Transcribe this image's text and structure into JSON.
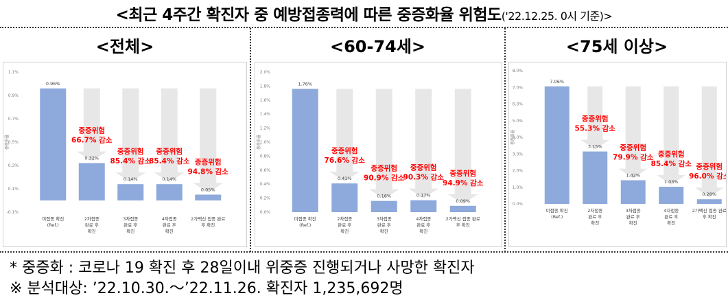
{
  "title": {
    "main": "<최근 4주간 확진자 중 예방접종력에 따른 중증화율 위험도",
    "sub": "('22.12.25. 0시 기준)>"
  },
  "colors": {
    "bar": "#8ea9db",
    "arrow": "#e7e7e7",
    "risk_text": "#ff0000",
    "axis_text": "#7f7f7f"
  },
  "notes": {
    "line1": "* 중증화 : 코로나 19 확진 후 28일이내 위중증 진행되거나 사망한 확진자",
    "line2": "※ 분석대상: ’22.10.30.～’22.11.26. 확진자 1,235,692명"
  },
  "chart_data": [
    {
      "type": "bar",
      "panel_title": "<전체>",
      "ylabel": "중증화율",
      "ylim": [
        -0.1,
        1.1
      ],
      "yticks": [
        "1.1%",
        "0.9%",
        "0.7%",
        "0.5%",
        "0.3%",
        "0.1%",
        "-0.1%"
      ],
      "ytick_values": [
        1.1,
        0.9,
        0.7,
        0.5,
        0.3,
        0.1,
        -0.1
      ],
      "categories": [
        "미접종 확진\n(Ref.)",
        "2차접종\n완료 후\n확진",
        "3차접종\n완료 후\n확진",
        "4차접종\n완료 후\n확진",
        "2가백신 접종 완료\n후 확진"
      ],
      "values": [
        0.96,
        0.32,
        0.14,
        0.14,
        0.05
      ],
      "value_labels": [
        "0.96%",
        "0.32%",
        "0.14%",
        "0.14%",
        "0.05%"
      ],
      "risk_labels": [
        "",
        "중증위험\n66.7% 감소",
        "중증위험\n85.4% 감소",
        "중증위험\n85.4% 감소",
        "중증위험\n94.8% 감소"
      ]
    },
    {
      "type": "bar",
      "panel_title": "<60-74세>",
      "ylabel": "중증화율",
      "ylim": [
        0,
        2.0
      ],
      "yticks": [
        "2.0%",
        "1.8%",
        "1.6%",
        "1.4%",
        "1.2%",
        "1.0%",
        "0.8%",
        "0.6%",
        "0.4%",
        "0.2%",
        "0.0%"
      ],
      "ytick_values": [
        2.0,
        1.8,
        1.6,
        1.4,
        1.2,
        1.0,
        0.8,
        0.6,
        0.4,
        0.2,
        0.0
      ],
      "categories": [
        "미접종 확진\n(Ref.)",
        "2차접종\n완료 후\n확진",
        "3차접종\n완료 후\n확진",
        "4차접종\n완료 후\n확진",
        "2가백신 접종 완료\n후 확진"
      ],
      "values": [
        1.76,
        0.41,
        0.16,
        0.17,
        0.09
      ],
      "value_labels": [
        "1.76%",
        "0.41%",
        "0.16%",
        "0.17%",
        "0.09%"
      ],
      "risk_labels": [
        "",
        "중증위험\n76.6% 감소",
        "중증위험\n90.9% 감소",
        "중증위험\n90.3% 감소",
        "중증위험\n94.9% 감소"
      ]
    },
    {
      "type": "bar",
      "panel_title": "<75세 이상>",
      "ylabel": "중증화율",
      "ylim": [
        0,
        8.0
      ],
      "yticks": [
        "8.0%",
        "7.0%",
        "6.0%",
        "5.0%",
        "4.0%",
        "3.0%",
        "2.0%",
        "1.0%",
        "0.0%"
      ],
      "ytick_values": [
        8.0,
        7.0,
        6.0,
        5.0,
        4.0,
        3.0,
        2.0,
        1.0,
        0.0
      ],
      "categories": [
        "미접종 확진\n(Ref.)",
        "2차접종\n완료 후\n확진",
        "3차접종\n완료 후\n확진",
        "4차접종\n완료 후\n확진",
        "2가백신 접종 완료\n후 확진"
      ],
      "values": [
        7.06,
        3.15,
        1.42,
        1.03,
        0.28
      ],
      "value_labels": [
        "7.06%",
        "3.15%",
        "1.42%",
        "1.03%",
        "0.28%"
      ],
      "risk_labels": [
        "",
        "중증위험\n55.3% 감소",
        "중증위험\n79.9% 감소",
        "중증위험\n85.4% 감소",
        "중증위험\n96.0% 감소"
      ]
    }
  ]
}
